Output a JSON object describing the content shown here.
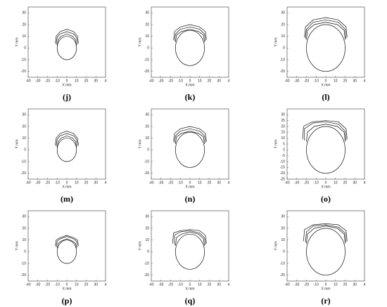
{
  "chart_data": [
    {
      "type": "profile",
      "label": "(j)",
      "xlabel": "X mm",
      "ylabel": "Y mm",
      "xlim": [
        -40,
        40
      ],
      "ylim": [
        -25,
        35
      ],
      "xticks": [
        -40,
        -30,
        -20,
        -10,
        0,
        10,
        20,
        30,
        {
          "value": 40,
          "label": "4"
        }
      ],
      "yticks": [
        -20,
        -10,
        0,
        10,
        20,
        30
      ],
      "circle": {
        "x": 0,
        "y": 0,
        "r": 10
      },
      "profiles": [
        {
          "x": [
            -10,
            -9,
            -6,
            0,
            6,
            9,
            10
          ],
          "y": [
            2,
            7,
            10,
            12,
            10,
            7,
            2
          ]
        },
        {
          "x": [
            -11,
            -10,
            -7,
            0,
            7,
            10,
            11
          ],
          "y": [
            3,
            9,
            12,
            14,
            12,
            9,
            3
          ]
        },
        {
          "x": [
            -12,
            -11,
            -7,
            0,
            7,
            11,
            12
          ],
          "y": [
            4,
            10,
            14,
            16,
            14,
            10,
            4
          ]
        }
      ]
    },
    {
      "type": "profile",
      "label": "(k)",
      "xlabel": "X mm",
      "ylabel": "Y mm",
      "xlim": [
        -40,
        40
      ],
      "ylim": [
        -25,
        35
      ],
      "xticks": [
        -40,
        -30,
        -20,
        -10,
        0,
        10,
        20,
        30,
        {
          "value": 40,
          "label": "4"
        }
      ],
      "yticks": [
        -20,
        -10,
        0,
        10,
        20,
        30
      ],
      "circle": {
        "x": 0,
        "y": 0,
        "r": 15
      },
      "profiles": [
        {
          "x": [
            -15,
            -14,
            -9,
            0,
            9,
            14,
            15
          ],
          "y": [
            5,
            11,
            14,
            16,
            14,
            11,
            5
          ]
        },
        {
          "x": [
            -16,
            -15,
            -10,
            0,
            10,
            15,
            16
          ],
          "y": [
            6,
            12,
            16,
            18,
            16,
            12,
            6
          ]
        },
        {
          "x": [
            -17,
            -16,
            -10,
            0,
            10,
            16,
            17
          ],
          "y": [
            7,
            14,
            18,
            20,
            18,
            14,
            7
          ]
        }
      ]
    },
    {
      "type": "profile",
      "label": "(l)",
      "xlabel": "X mm",
      "ylabel": "Y mm",
      "xlim": [
        -40,
        40
      ],
      "ylim": [
        -25,
        35
      ],
      "xticks": [
        -40,
        -30,
        -20,
        -10,
        0,
        10,
        20,
        30,
        {
          "value": 40,
          "label": "4"
        }
      ],
      "yticks": [
        -20,
        -10,
        0,
        10,
        20,
        30
      ],
      "circle": {
        "x": 0,
        "y": 0,
        "r": 20
      },
      "profiles": [
        {
          "x": [
            -20,
            -19,
            -12,
            0,
            12,
            19,
            20
          ],
          "y": [
            7,
            15,
            20,
            22,
            20,
            15,
            7
          ]
        },
        {
          "x": [
            -21,
            -20,
            -13,
            0,
            13,
            20,
            21
          ],
          "y": [
            8,
            16,
            22,
            24,
            22,
            16,
            8
          ]
        },
        {
          "x": [
            -22,
            -21,
            -13,
            0,
            13,
            21,
            22
          ],
          "y": [
            9,
            18,
            24,
            26,
            24,
            18,
            9
          ]
        }
      ]
    },
    {
      "type": "profile",
      "label": "(m)",
      "xlabel": "X mm",
      "ylabel": "Y mm",
      "xlim": [
        -40,
        40
      ],
      "ylim": [
        -25,
        35
      ],
      "xticks": [
        -40,
        -30,
        -20,
        -10,
        0,
        10,
        20,
        30,
        {
          "value": 40,
          "label": "4"
        }
      ],
      "yticks": [
        -20,
        -10,
        0,
        10,
        20,
        30
      ],
      "circle": {
        "x": 0,
        "y": 0,
        "r": 10
      },
      "profiles": [
        {
          "x": [
            -10,
            -9,
            -6,
            0,
            6,
            9,
            10
          ],
          "y": [
            2,
            7,
            10,
            12,
            10,
            7,
            2
          ]
        },
        {
          "x": [
            -11,
            -10,
            -7,
            0,
            7,
            10,
            11
          ],
          "y": [
            3,
            9,
            12,
            14,
            12,
            9,
            3
          ]
        },
        {
          "x": [
            -12,
            -11,
            -7,
            0,
            7,
            11,
            12
          ],
          "y": [
            4,
            10,
            14,
            16,
            14,
            10,
            4
          ]
        }
      ]
    },
    {
      "type": "profile",
      "label": "(n)",
      "xlabel": "X mm",
      "ylabel": "Y mm",
      "xlim": [
        -40,
        40
      ],
      "ylim": [
        -25,
        35
      ],
      "xticks": [
        -40,
        -30,
        -20,
        -10,
        0,
        10,
        20,
        30,
        {
          "value": 40,
          "label": "4"
        }
      ],
      "yticks": [
        -20,
        -10,
        0,
        10,
        20,
        30
      ],
      "circle": {
        "x": 0,
        "y": 0,
        "r": 15
      },
      "profiles": [
        {
          "x": [
            -15,
            -14,
            -9,
            0,
            9,
            14,
            15
          ],
          "y": [
            5,
            11,
            14,
            16,
            14,
            11,
            5
          ]
        },
        {
          "x": [
            -16,
            -15,
            -10,
            0,
            10,
            15,
            16
          ],
          "y": [
            6,
            12,
            16,
            18,
            16,
            12,
            6
          ]
        },
        {
          "x": [
            -17,
            -16,
            -10,
            0,
            10,
            16,
            17
          ],
          "y": [
            7,
            14,
            18,
            20,
            18,
            14,
            7
          ]
        }
      ]
    },
    {
      "type": "profile",
      "label": "(o)",
      "xlabel": "X mm",
      "ylabel": "Y mm",
      "xlim": [
        -40,
        40
      ],
      "ylim": [
        -25,
        35
      ],
      "xticks": [
        -40,
        -30,
        -20,
        -10,
        0,
        10,
        20,
        30,
        {
          "value": 40,
          "label": "4"
        }
      ],
      "yticks": [
        -25,
        -20,
        -15,
        -10,
        -5,
        0,
        5,
        10,
        15,
        20,
        25,
        30
      ],
      "circle": {
        "x": 0,
        "y": 0,
        "r": 20
      },
      "profiles": [
        {
          "x": [
            -20,
            -19,
            -12,
            0,
            12,
            19,
            20
          ],
          "y": [
            7,
            15,
            20,
            22,
            20,
            15,
            7
          ]
        },
        {
          "x": [
            -22,
            -22,
            -13,
            0,
            13,
            20,
            21
          ],
          "y": [
            8,
            18,
            23,
            24,
            22,
            16,
            8
          ]
        },
        {
          "x": [
            -24,
            -23,
            -14,
            0,
            13,
            21,
            22
          ],
          "y": [
            9,
            20,
            24,
            25,
            24,
            18,
            9
          ]
        }
      ]
    },
    {
      "type": "profile",
      "label": "(p)",
      "xlabel": "X mm",
      "ylabel": "Y mm",
      "xlim": [
        -40,
        40
      ],
      "ylim": [
        -25,
        35
      ],
      "xticks": [
        -40,
        -30,
        -20,
        -10,
        0,
        10,
        20,
        30,
        {
          "value": 40,
          "label": "4"
        }
      ],
      "yticks": [
        -20,
        -10,
        0,
        10,
        20,
        30
      ],
      "circle": {
        "x": 0,
        "y": 0,
        "r": 10
      },
      "profiles": [
        {
          "x": [
            -10,
            -9,
            -6,
            0,
            6,
            9,
            10
          ],
          "y": [
            3,
            7,
            9,
            11,
            9,
            7,
            3
          ]
        },
        {
          "x": [
            -11,
            -10,
            -7,
            0,
            7,
            10,
            11
          ],
          "y": [
            4,
            9,
            11,
            13,
            11,
            9,
            4
          ]
        },
        {
          "x": [
            -12,
            -11,
            -7,
            0,
            7,
            11,
            12
          ],
          "y": [
            5,
            10,
            12,
            14,
            12,
            10,
            5
          ]
        }
      ]
    },
    {
      "type": "profile",
      "label": "(q)",
      "xlabel": "X mm",
      "ylabel": "Y mm",
      "xlim": [
        -40,
        40
      ],
      "ylim": [
        -25,
        35
      ],
      "xticks": [
        -40,
        -30,
        -20,
        -10,
        0,
        10,
        20,
        30,
        {
          "value": 40,
          "label": "4"
        }
      ],
      "yticks": [
        -20,
        -10,
        0,
        10,
        20,
        30
      ],
      "circle": {
        "x": 0,
        "y": 0,
        "r": 15
      },
      "profiles": [
        {
          "x": [
            -15,
            -14,
            -9,
            0,
            9,
            14,
            15
          ],
          "y": [
            5,
            12,
            15,
            17,
            15,
            11,
            5
          ]
        },
        {
          "x": [
            -16,
            -16,
            -10,
            0,
            10,
            15,
            16
          ],
          "y": [
            6,
            14,
            17,
            18,
            16,
            12,
            6
          ]
        },
        {
          "x": [
            -18,
            -17,
            -10,
            0,
            10,
            16,
            17
          ],
          "y": [
            7,
            16,
            18,
            19,
            18,
            14,
            7
          ]
        }
      ]
    },
    {
      "type": "profile",
      "label": "(r)",
      "xlabel": "X mm",
      "ylabel": "Y mm",
      "xlim": [
        -40,
        40
      ],
      "ylim": [
        -25,
        35
      ],
      "xticks": [
        -40,
        -30,
        -20,
        -10,
        0,
        10,
        20,
        30,
        {
          "value": 40,
          "label": "4"
        }
      ],
      "yticks": [
        -20,
        -10,
        0,
        10,
        20,
        30
      ],
      "circle": {
        "x": 0,
        "y": 0,
        "r": 20
      },
      "profiles": [
        {
          "x": [
            -20,
            -19,
            -12,
            0,
            12,
            19,
            20
          ],
          "y": [
            7,
            15,
            20,
            22,
            20,
            15,
            7
          ]
        },
        {
          "x": [
            -21,
            -20,
            -13,
            0,
            13,
            20,
            21
          ],
          "y": [
            8,
            17,
            22,
            23,
            21,
            16,
            8
          ]
        },
        {
          "x": [
            -23,
            -22,
            -13,
            0,
            13,
            21,
            22
          ],
          "y": [
            9,
            19,
            23,
            24,
            23,
            18,
            9
          ]
        }
      ]
    }
  ]
}
